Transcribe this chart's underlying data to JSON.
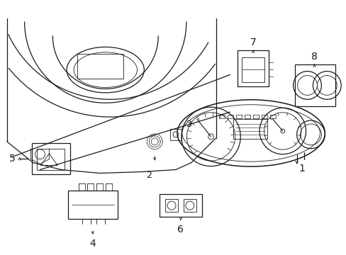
{
  "bg_color": "#ffffff",
  "line_color": "#1a1a1a",
  "fig_width": 4.89,
  "fig_height": 3.6,
  "dpi": 100,
  "label_fontsize": 9
}
